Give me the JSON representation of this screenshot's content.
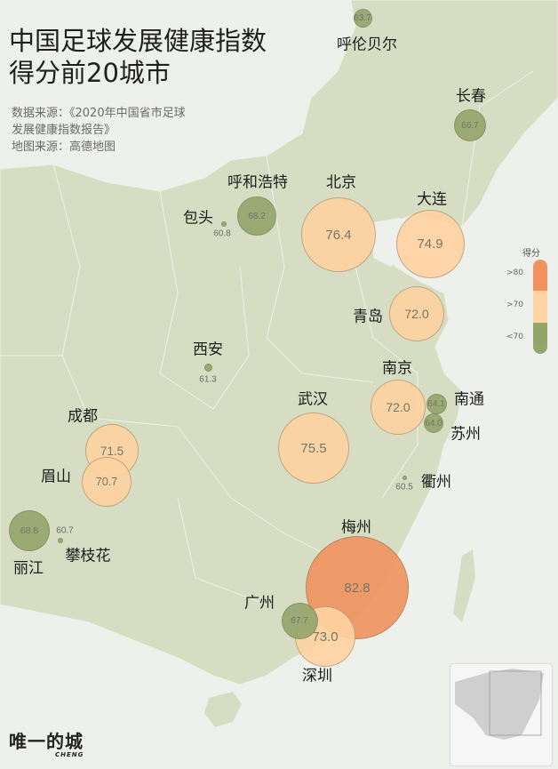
{
  "title": {
    "line1": "中国足球发展健康指数",
    "line2": "得分前20城市"
  },
  "source": {
    "line1": "数据来源：《2020年中国省市足球",
    "line2": "发展健康指数报告》",
    "line3": "地图来源：高德地图"
  },
  "legend": {
    "title": "得分",
    "items": [
      {
        "label": ">80",
        "color": "#f0925f"
      },
      {
        "label": ">70",
        "color": "#ffd3a2"
      },
      {
        "label": "<70",
        "color": "#94a56c"
      }
    ]
  },
  "cities": [
    {
      "name": "呼伦贝尔",
      "score": 63.7
    },
    {
      "name": "长春",
      "score": 66.7
    },
    {
      "name": "呼和浩特",
      "score": 68.2
    },
    {
      "name": "包头",
      "score": 60.8
    },
    {
      "name": "北京",
      "score": 76.4
    },
    {
      "name": "大连",
      "score": 74.9
    },
    {
      "name": "青岛",
      "score": 72.0
    },
    {
      "name": "西安",
      "score": 61.3
    },
    {
      "name": "南京",
      "score": 72.0
    },
    {
      "name": "南通",
      "score": 64.1
    },
    {
      "name": "苏州",
      "score": 64.0
    },
    {
      "name": "武汉",
      "score": 75.5
    },
    {
      "name": "成都",
      "score": 71.5
    },
    {
      "name": "眉山",
      "score": 70.7
    },
    {
      "name": "衢州",
      "score": 60.5
    },
    {
      "name": "丽江",
      "score": 68.8
    },
    {
      "name": "攀枝花",
      "score": 60.7
    },
    {
      "name": "梅州",
      "score": 82.8
    },
    {
      "name": "广州",
      "score": 67.7
    },
    {
      "name": "深圳",
      "score": 73.0
    }
  ],
  "brand": {
    "name": "唯一的城",
    "sub": "CHENG"
  }
}
